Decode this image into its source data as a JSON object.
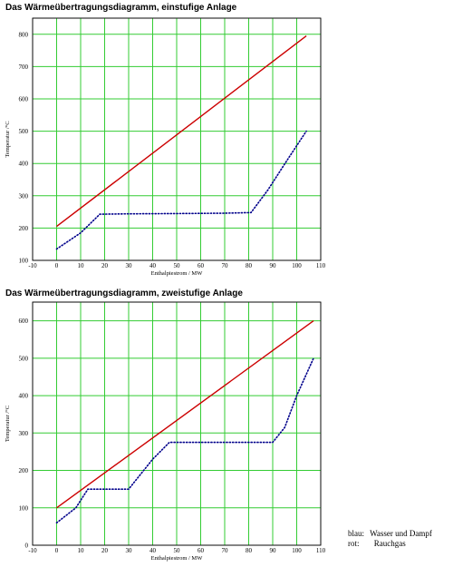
{
  "chart_data": [
    {
      "type": "line",
      "title": "Das Wärmeübertragungsdiagramm, einstufige Anlage",
      "xlabel": "Enthalpiestrom / MW",
      "ylabel": "Temperatur /°C",
      "xlim": [
        -10,
        110
      ],
      "ylim": [
        100,
        850
      ],
      "xticks": [
        -10,
        0,
        10,
        20,
        30,
        40,
        50,
        60,
        70,
        80,
        90,
        100,
        110
      ],
      "yticks": [
        100,
        200,
        300,
        400,
        500,
        600,
        700,
        800
      ],
      "grid": true,
      "series": [
        {
          "color": "#cc0000",
          "style": "solid",
          "x": [
            0,
            104
          ],
          "y": [
            205,
            795
          ]
        },
        {
          "color": "#00008b",
          "style": "dotted",
          "x": [
            0,
            10,
            18,
            30,
            50,
            70,
            81,
            88,
            96,
            104
          ],
          "y": [
            135,
            185,
            243,
            244,
            245,
            246,
            248,
            318,
            410,
            500
          ]
        }
      ]
    },
    {
      "type": "line",
      "title": "Das Wärmeübertragungsdiagramm,  zweistufige Anlage",
      "xlabel": "Enthalpiestrom / MW",
      "ylabel": "Temperatur /°C",
      "xlim": [
        -10,
        110
      ],
      "ylim": [
        0,
        650
      ],
      "xticks": [
        -10,
        0,
        10,
        20,
        30,
        40,
        50,
        60,
        70,
        80,
        90,
        100,
        110
      ],
      "yticks": [
        0,
        100,
        200,
        300,
        400,
        500,
        600
      ],
      "grid": true,
      "series": [
        {
          "color": "#cc0000",
          "style": "solid",
          "x": [
            0,
            107
          ],
          "y": [
            100,
            600
          ]
        },
        {
          "color": "#00008b",
          "style": "dotted",
          "x": [
            0,
            8,
            13,
            30,
            40,
            47,
            70,
            90,
            95,
            100,
            107
          ],
          "y": [
            60,
            100,
            150,
            150,
            230,
            275,
            275,
            275,
            315,
            400,
            500
          ]
        }
      ]
    }
  ],
  "legend": {
    "blue_key": "blau:",
    "blue_text": "Wasser und Dampf",
    "red_key": "rot:",
    "red_text": "Rauchgas"
  }
}
